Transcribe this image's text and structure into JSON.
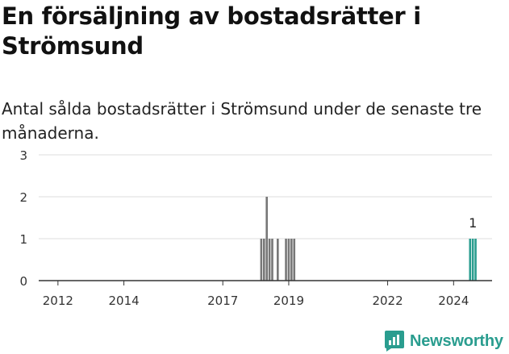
{
  "title": "En försäljning av bostadsrätter i Strömsund",
  "subtitle": "Antal sålda bostadsrätter i Strömsund under de senaste tre månaderna.",
  "brand": "Newsworthy",
  "colors": {
    "bar": "#777777",
    "highlight": "#2a9d8f",
    "grid": "#dddddd",
    "axis": "#333333",
    "text": "#333333"
  },
  "chart_data": {
    "type": "bar",
    "title": "En försäljning av bostadsrätter i Strömsund",
    "subtitle": "Antal sålda bostadsrätter i Strömsund under de senaste tre månaderna.",
    "xlabel": "",
    "ylabel": "",
    "ylim": [
      0,
      3
    ],
    "yticks": [
      0,
      1,
      2,
      3
    ],
    "xlim": [
      "2011-06",
      "2025-03"
    ],
    "xticks": [
      {
        "date": "2012-01",
        "label": "2012"
      },
      {
        "date": "2014-01",
        "label": "2014"
      },
      {
        "date": "2017-01",
        "label": "2017"
      },
      {
        "date": "2019-01",
        "label": "2019"
      },
      {
        "date": "2022-01",
        "label": "2022"
      },
      {
        "date": "2024-01",
        "label": "2024"
      }
    ],
    "grid": true,
    "series": [
      {
        "points": [
          {
            "date": "2018-03",
            "value": 1
          },
          {
            "date": "2018-04",
            "value": 1
          },
          {
            "date": "2018-05",
            "value": 2
          },
          {
            "date": "2018-06",
            "value": 1
          },
          {
            "date": "2018-07",
            "value": 1
          },
          {
            "date": "2018-09",
            "value": 1
          },
          {
            "date": "2018-12",
            "value": 1
          },
          {
            "date": "2019-01",
            "value": 1
          },
          {
            "date": "2019-02",
            "value": 1
          },
          {
            "date": "2019-03",
            "value": 1
          }
        ]
      },
      {
        "highlight": true,
        "points": [
          {
            "date": "2024-07",
            "value": 1
          },
          {
            "date": "2024-08",
            "value": 1
          },
          {
            "date": "2024-09",
            "value": 1
          }
        ]
      }
    ],
    "annotations": [
      {
        "date": "2024-08",
        "value": 1,
        "text": "1"
      }
    ]
  }
}
